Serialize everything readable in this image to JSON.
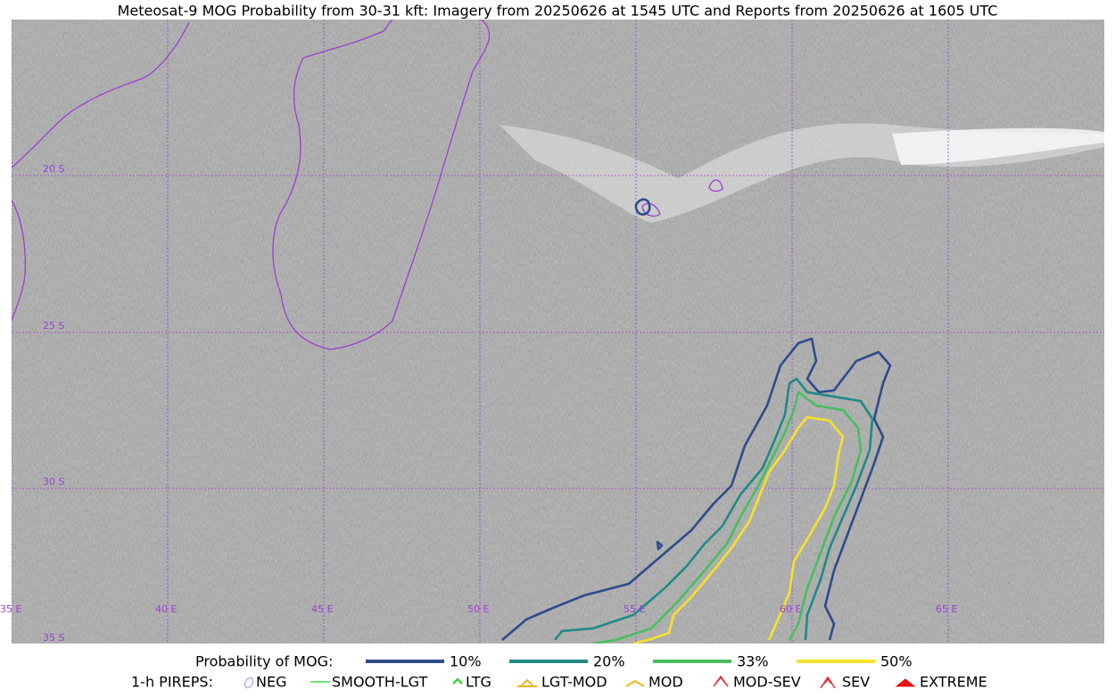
{
  "title": "Meteosat-9 MOG Probability from 30-31 kft: Imagery from 20250626 at 1545 UTC and Reports from 20250626 at 1605 UTC",
  "map": {
    "latitude_labels": [
      "20 S",
      "25 S",
      "30 S",
      "35 S"
    ],
    "longitude_labels": [
      "35 E",
      "40 E",
      "45 E",
      "50 E",
      "55 E",
      "60 E",
      "65 E"
    ],
    "grid_color": "#9a3fd0",
    "coast_color": "#9a3fd0"
  },
  "legend": {
    "probability": {
      "label": "Probability of MOG:",
      "items": [
        {
          "label": "10%",
          "color": "#2f4b8c"
        },
        {
          "label": "20%",
          "color": "#1f8a84"
        },
        {
          "label": "33%",
          "color": "#47bf5f"
        },
        {
          "label": "50%",
          "color": "#f5e12a"
        }
      ]
    },
    "pireps": {
      "label": "1-h PIREPS:",
      "items": [
        {
          "label": "NEG",
          "color": "#b4b4f0"
        },
        {
          "label": "SMOOTH-LGT",
          "color": "#3cdc3c"
        },
        {
          "label": "LTG",
          "color": "#1ed21e"
        },
        {
          "label": "LGT-MOD",
          "color": "#f0b41e"
        },
        {
          "label": "MOD",
          "color": "#f0b41e"
        },
        {
          "label": "MOD-SEV",
          "color": "#e62828"
        },
        {
          "label": "SEV",
          "color": "#e62828"
        },
        {
          "label": "EXTREME",
          "color": "#e61414"
        }
      ]
    }
  }
}
